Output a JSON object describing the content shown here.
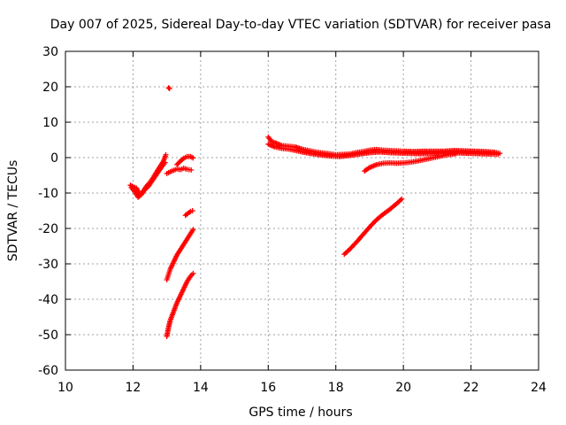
{
  "chart_data": {
    "type": "scatter",
    "title": "Day 007 of 2025, Sidereal Day-to-day VTEC variation (SDTVAR) for receiver pasa",
    "xlabel": "GPS time / hours",
    "ylabel": "SDTVAR / TECUs",
    "xlim": [
      10,
      24
    ],
    "ylim": [
      -60,
      30
    ],
    "xticks": [
      10,
      12,
      14,
      16,
      18,
      20,
      22,
      24
    ],
    "yticks": [
      30,
      20,
      10,
      0,
      -10,
      -20,
      -30,
      -40,
      -50,
      -60
    ],
    "grid": true,
    "marker": "plus",
    "color": "#ff0000",
    "series": [
      {
        "segments": [
          [
            [
              11.92,
              -7.8
            ],
            [
              12.0,
              -8.2
            ],
            [
              12.1,
              -8.6
            ],
            [
              12.2,
              -10.5
            ],
            [
              12.3,
              -9.5
            ],
            [
              12.4,
              -8.0
            ],
            [
              12.5,
              -7.0
            ],
            [
              12.6,
              -5.6
            ],
            [
              12.7,
              -4.0
            ],
            [
              12.8,
              -2.5
            ],
            [
              12.9,
              -1.0
            ],
            [
              12.97,
              0.8
            ]
          ],
          [
            [
              11.95,
              -8.5
            ],
            [
              12.05,
              -9.6
            ],
            [
              12.15,
              -11.2
            ],
            [
              12.25,
              -10.4
            ],
            [
              12.35,
              -9.0
            ],
            [
              12.45,
              -8.2
            ],
            [
              12.55,
              -6.8
            ],
            [
              12.65,
              -5.4
            ],
            [
              12.75,
              -4.0
            ],
            [
              12.85,
              -2.6
            ],
            [
              12.95,
              -1.4
            ]
          ],
          [
            [
              13.05,
              19.7
            ],
            [
              13.08,
              19.5
            ]
          ],
          [
            [
              13.0,
              -4.5
            ],
            [
              13.1,
              -4.0
            ],
            [
              13.2,
              -3.6
            ],
            [
              13.3,
              -3.2
            ],
            [
              13.4,
              -3.4
            ],
            [
              13.5,
              -3.0
            ],
            [
              13.6,
              -3.3
            ],
            [
              13.72,
              -3.5
            ]
          ],
          [
            [
              13.3,
              -2.0
            ],
            [
              13.4,
              -1.0
            ],
            [
              13.5,
              -0.2
            ],
            [
              13.6,
              0.3
            ],
            [
              13.7,
              0.3
            ],
            [
              13.78,
              -0.1
            ]
          ],
          [
            [
              13.55,
              -16.3
            ],
            [
              13.62,
              -15.8
            ],
            [
              13.7,
              -15.2
            ],
            [
              13.76,
              -15.0
            ]
          ],
          [
            [
              13.0,
              -34.5
            ],
            [
              13.05,
              -33.0
            ],
            [
              13.1,
              -31.5
            ],
            [
              13.2,
              -29.5
            ],
            [
              13.3,
              -27.5
            ],
            [
              13.4,
              -26.0
            ],
            [
              13.5,
              -24.5
            ],
            [
              13.6,
              -23.0
            ],
            [
              13.7,
              -21.5
            ],
            [
              13.78,
              -20.3
            ]
          ],
          [
            [
              13.0,
              -50.5
            ],
            [
              13.05,
              -48.0
            ],
            [
              13.1,
              -46.0
            ],
            [
              13.2,
              -43.5
            ],
            [
              13.3,
              -41.0
            ],
            [
              13.4,
              -39.0
            ],
            [
              13.5,
              -37.0
            ],
            [
              13.6,
              -35.0
            ],
            [
              13.7,
              -33.5
            ],
            [
              13.78,
              -32.7
            ]
          ],
          [
            [
              16.0,
              5.8
            ],
            [
              16.1,
              4.6
            ],
            [
              16.2,
              4.2
            ],
            [
              16.4,
              3.4
            ],
            [
              16.6,
              3.2
            ],
            [
              16.8,
              3.0
            ],
            [
              17.0,
              2.4
            ],
            [
              17.2,
              2.0
            ],
            [
              17.4,
              1.6
            ],
            [
              17.6,
              1.3
            ],
            [
              17.8,
              1.1
            ],
            [
              18.0,
              0.8
            ],
            [
              18.2,
              0.9
            ],
            [
              18.4,
              1.0
            ],
            [
              18.6,
              1.4
            ],
            [
              18.8,
              1.7
            ],
            [
              19.0,
              2.1
            ],
            [
              19.2,
              2.3
            ],
            [
              19.4,
              2.1
            ],
            [
              19.6,
              2.0
            ],
            [
              19.8,
              1.9
            ],
            [
              20.0,
              1.8
            ],
            [
              20.3,
              1.7
            ],
            [
              20.6,
              1.8
            ],
            [
              20.9,
              1.8
            ],
            [
              21.2,
              1.8
            ],
            [
              21.5,
              2.0
            ],
            [
              21.8,
              1.9
            ],
            [
              22.1,
              1.8
            ],
            [
              22.4,
              1.7
            ],
            [
              22.7,
              1.5
            ],
            [
              22.85,
              1.2
            ]
          ],
          [
            [
              16.0,
              3.8
            ],
            [
              16.2,
              3.0
            ],
            [
              16.4,
              2.6
            ],
            [
              16.6,
              2.4
            ],
            [
              16.8,
              2.0
            ],
            [
              17.0,
              1.6
            ],
            [
              17.3,
              1.1
            ],
            [
              17.6,
              0.7
            ],
            [
              17.9,
              0.4
            ],
            [
              18.1,
              0.3
            ],
            [
              18.4,
              0.6
            ],
            [
              18.7,
              1.0
            ],
            [
              19.0,
              1.4
            ],
            [
              19.3,
              1.6
            ],
            [
              19.6,
              1.4
            ],
            [
              19.9,
              1.3
            ],
            [
              20.2,
              1.2
            ],
            [
              20.5,
              1.1
            ],
            [
              20.8,
              1.2
            ],
            [
              21.1,
              1.3
            ],
            [
              21.4,
              1.4
            ],
            [
              21.7,
              1.3
            ],
            [
              22.0,
              1.2
            ],
            [
              22.3,
              1.1
            ],
            [
              22.6,
              1.0
            ],
            [
              22.8,
              0.9
            ]
          ],
          [
            [
              18.85,
              -3.8
            ],
            [
              19.0,
              -2.8
            ],
            [
              19.2,
              -2.0
            ],
            [
              19.4,
              -1.6
            ],
            [
              19.6,
              -1.5
            ],
            [
              19.8,
              -1.6
            ],
            [
              20.0,
              -1.5
            ],
            [
              20.2,
              -1.3
            ],
            [
              20.4,
              -1.0
            ],
            [
              20.6,
              -0.6
            ],
            [
              20.8,
              -0.2
            ],
            [
              21.0,
              0.2
            ],
            [
              21.2,
              0.6
            ],
            [
              21.4,
              0.9
            ],
            [
              21.55,
              1.1
            ]
          ],
          [
            [
              18.25,
              -27.3
            ],
            [
              18.4,
              -26.0
            ],
            [
              18.6,
              -24.0
            ],
            [
              18.8,
              -21.8
            ],
            [
              19.0,
              -19.6
            ],
            [
              19.2,
              -17.6
            ],
            [
              19.4,
              -16.0
            ],
            [
              19.6,
              -14.6
            ],
            [
              19.8,
              -13.0
            ],
            [
              19.95,
              -11.7
            ]
          ]
        ]
      }
    ]
  }
}
